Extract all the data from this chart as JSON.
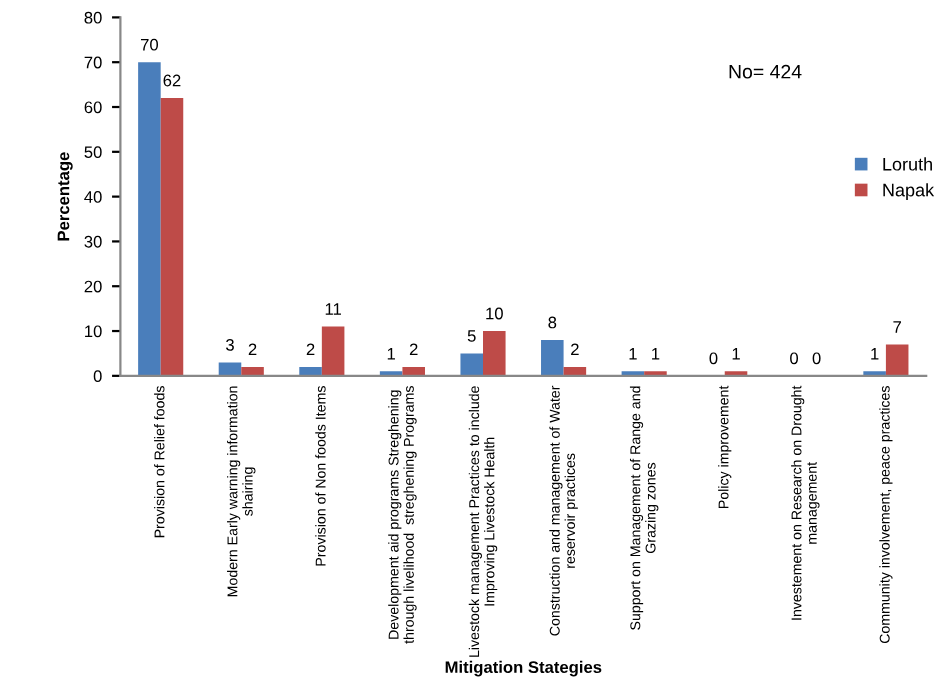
{
  "chart_data": {
    "type": "bar",
    "xlabel": "Mitigation Stategies",
    "ylabel": "Percentage",
    "categories": [
      "Provision of Relief foods",
      "Modern Early warning information\nshairing",
      "Provision of Non foods Items",
      "Development aid programs Streghening\nthrough livelihood  streghening Programs",
      "Livestock management Practices to include\nImproving Livestock Health",
      "Construction and management of Water\nreservoir practices",
      "Support on Management of Range and\nGrazing zones",
      "Policy improvement",
      "Investement on Research on Drought\nmanagement",
      "Community involvement, peace practices"
    ],
    "series": [
      {
        "name": "Loruth",
        "color": "#4a7ebb",
        "values": [
          70,
          3,
          2,
          1,
          5,
          8,
          1,
          0,
          0,
          1
        ]
      },
      {
        "name": "Napak",
        "color": "#be4b48",
        "values": [
          62,
          2,
          11,
          2,
          10,
          2,
          1,
          1,
          0,
          7
        ]
      }
    ],
    "ylim": [
      0,
      80
    ],
    "yticks": [
      0,
      10,
      20,
      30,
      40,
      50,
      60,
      70,
      80
    ],
    "data_labels": true,
    "legend": "right",
    "grid": false,
    "annotations": [
      "No= 424"
    ]
  }
}
